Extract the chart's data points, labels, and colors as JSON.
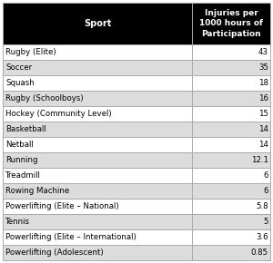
{
  "header_col1": "Sport",
  "header_col2": "Injuries per\n1000 hours of\nParticipation",
  "rows": [
    [
      "Rugby (Elite)",
      "43"
    ],
    [
      "Soccer",
      "35"
    ],
    [
      "Squash",
      "18"
    ],
    [
      "Rugby (Schoolboys)",
      "16"
    ],
    [
      "Hockey (Community Level)",
      "15"
    ],
    [
      "Basketball",
      "14"
    ],
    [
      "Netball",
      "14"
    ],
    [
      "Running",
      "12.1"
    ],
    [
      "Treadmill",
      "6"
    ],
    [
      "Rowing Machine",
      "6"
    ],
    [
      "Powerlifting (Elite – National)",
      "5.8"
    ],
    [
      "Tennis",
      "5"
    ],
    [
      "Powerlifting (Elite – International)",
      "3.6"
    ],
    [
      "Powerlifting (Adolescent)",
      "0.85"
    ]
  ],
  "header_bg": "#000000",
  "header_fg": "#ffffff",
  "row_bg_odd": "#ffffff",
  "row_bg_even": "#dcdcdc",
  "border_color": "#aaaaaa",
  "text_color": "#000000",
  "col_split": 0.695,
  "font_size_header": 7.0,
  "font_size_row": 6.2
}
